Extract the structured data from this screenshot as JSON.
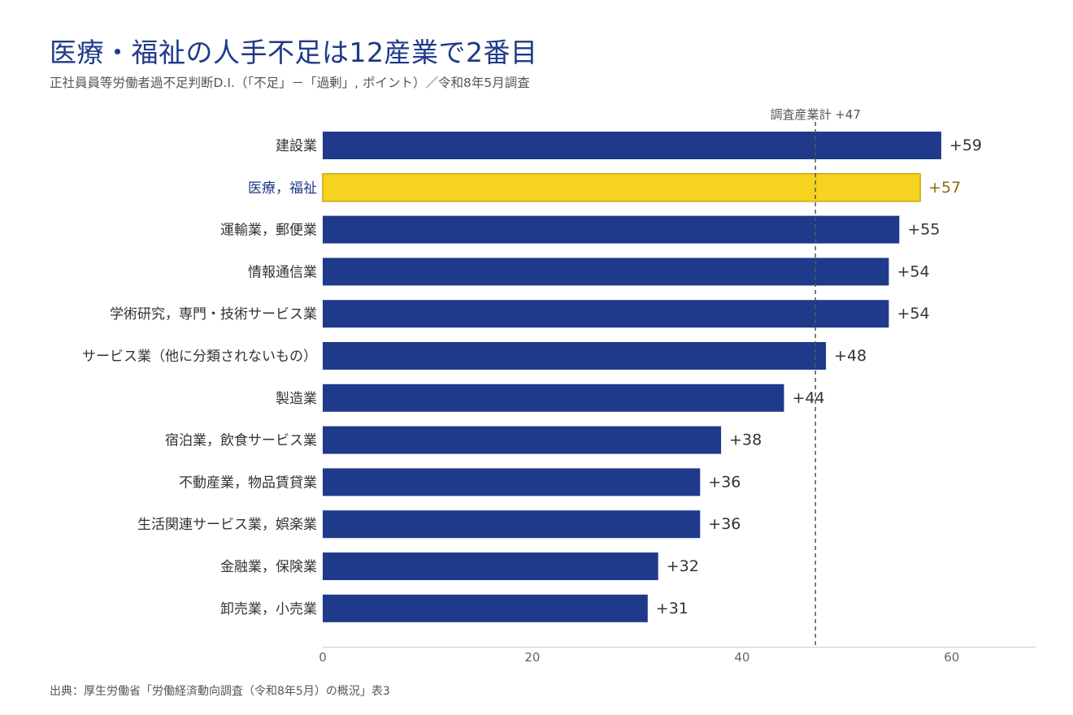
{
  "title": "医療・福祉の人手不足は12産業で2番目",
  "subtitle": "正社員員等労働者過不足判断D.I.（「不足」－「過剰」, ポイント）／令和8年5月調査",
  "source": "出典：厚生労働省「労働経済動向調査（令和8年5月）の概況」表3",
  "colors": {
    "bar": "#1f3a8a",
    "highlight": "#f5d320",
    "highlight_text": "#8a6d10",
    "reference": "#555555"
  },
  "chart_data": {
    "type": "bar",
    "orientation": "horizontal",
    "categories": [
      "建設業",
      "医療，福祉",
      "運輸業，郵便業",
      "情報通信業",
      "学術研究，専門・技術サービス業",
      "サービス業（他に分類されないもの）",
      "製造業",
      "宿泊業，飲食サービス業",
      "不動産業，物品賃貸業",
      "生活関連サービス業，娯楽業",
      "金融業，保険業",
      "卸売業，小売業"
    ],
    "values": [
      59,
      57,
      55,
      54,
      54,
      48,
      44,
      38,
      36,
      36,
      32,
      31
    ],
    "value_labels": [
      "+59",
      "+57",
      "+55",
      "+54",
      "+54",
      "+48",
      "+44",
      "+38",
      "+36",
      "+36",
      "+32",
      "+31"
    ],
    "highlight": "医療，福祉",
    "xlim": [
      0,
      68
    ],
    "xticks": [
      0,
      20,
      40,
      60
    ],
    "reference_line": {
      "value": 47,
      "label": "調査産業計 +47"
    },
    "grid": false
  }
}
